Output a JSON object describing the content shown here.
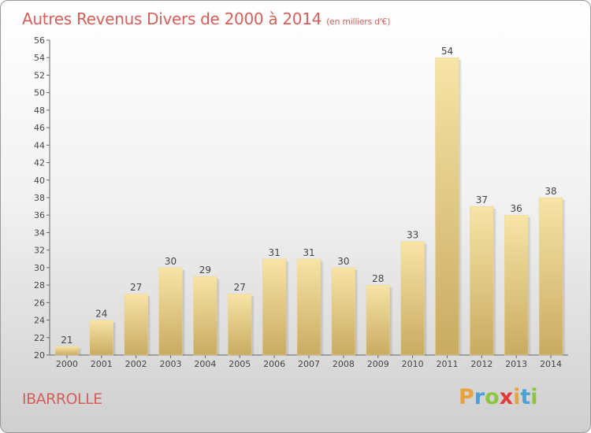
{
  "header": {
    "title": "Autres Revenus Divers de 2000 à 2014",
    "unit": "(en milliers d'€)"
  },
  "footer": {
    "commune": "IBARROLLE",
    "logo_letters": [
      "P",
      "r",
      "o",
      "x",
      "i",
      "t",
      "i"
    ],
    "logo_colors": [
      "#e8a33a",
      "#4aa0d8",
      "#8cc63f",
      "#e23b3b",
      "#e8a33a",
      "#4aa0d8",
      "#8cc63f"
    ]
  },
  "colors": {
    "title": "#d2605b",
    "bar_light": "#f7e4a6",
    "bar_dark": "#c9ab62"
  },
  "chart_data": {
    "type": "bar",
    "title": "Autres Revenus Divers de 2000 à 2014",
    "categories": [
      "2000",
      "2001",
      "2002",
      "2003",
      "2004",
      "2005",
      "2006",
      "2007",
      "2008",
      "2009",
      "2010",
      "2011",
      "2012",
      "2013",
      "2014"
    ],
    "values": [
      21,
      24,
      27,
      30,
      29,
      27,
      31,
      31,
      30,
      28,
      33,
      54,
      37,
      36,
      38
    ],
    "xlabel": "",
    "ylabel": "",
    "ylim": [
      20,
      56
    ],
    "ytick_step": 2,
    "grid": false,
    "legend": "none"
  }
}
